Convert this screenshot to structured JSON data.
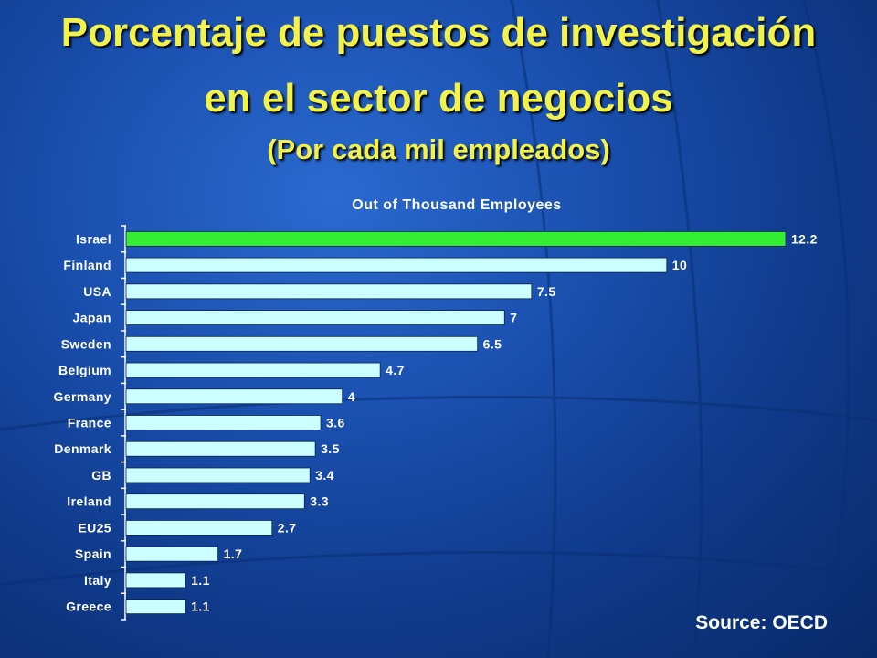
{
  "slide": {
    "title_line1": "Porcentaje de puestos de investigación",
    "title_line2": "en el sector de negocios",
    "subtitle": "(Por cada mil empleados)",
    "source": "Source: OECD"
  },
  "colors": {
    "title": "#f2f24a",
    "bar_default": "#ccffff",
    "bar_highlight": "#33ee33",
    "text": "#ffffff"
  },
  "chart_data": {
    "type": "bar",
    "orientation": "horizontal",
    "title": "Out of Thousand Employees",
    "categories": [
      "Israel",
      "Finland",
      "USA",
      "Japan",
      "Sweden",
      "Belgium",
      "Germany",
      "France",
      "Denmark",
      "GB",
      "Ireland",
      "EU25",
      "Spain",
      "Italy",
      "Greece"
    ],
    "values": [
      12.2,
      10,
      7.5,
      7,
      6.5,
      4.7,
      4,
      3.6,
      3.5,
      3.4,
      3.3,
      2.7,
      1.7,
      1.1,
      1.1
    ],
    "value_labels": [
      "12.2",
      "10",
      "7.5",
      "7",
      "6.5",
      "4.7",
      "4",
      "3.6",
      "3.5",
      "3.4",
      "3.3",
      "2.7",
      "1.7",
      "1.1",
      "1.1"
    ],
    "highlight_category": "Israel",
    "xlim": [
      0,
      12.2
    ],
    "grid": false,
    "legend": "none"
  }
}
